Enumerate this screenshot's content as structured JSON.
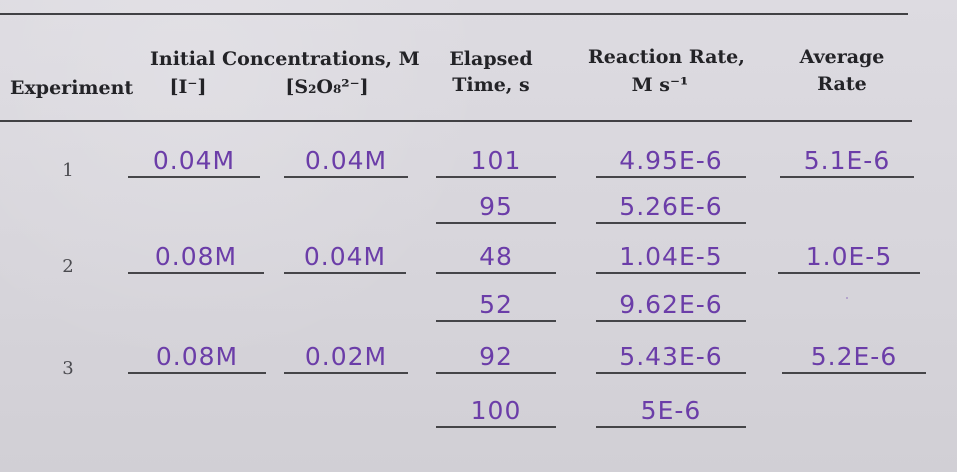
{
  "headers": {
    "experiment": "Experiment",
    "initial_concentrations": "Initial Concentrations, M",
    "iodide": "[I⁻]",
    "persulfate": "[S₂O₈²⁻]",
    "elapsed_time_line1": "Elapsed",
    "elapsed_time_line2": "Time, s",
    "reaction_rate_line1": "Reaction Rate,",
    "reaction_rate_line2": "M s⁻¹",
    "average_rate_line1": "Average",
    "average_rate_line2": "Rate"
  },
  "experiments": [
    {
      "number": "1",
      "iodide": "0.04M",
      "persulfate": "0.04M",
      "elapsed_times": [
        "101",
        "95"
      ],
      "reaction_rates": [
        "4.95E-6",
        "5.26E-6"
      ],
      "average_rate": "5.1E-6"
    },
    {
      "number": "2",
      "iodide": "0.08M",
      "persulfate": "0.04M",
      "elapsed_times": [
        "48",
        "52"
      ],
      "reaction_rates": [
        "1.04E-5",
        "9.62E-6"
      ],
      "average_rate": "1.0E-5"
    },
    {
      "number": "3",
      "iodide": "0.08M",
      "persulfate": "0.02M",
      "elapsed_times": [
        "92",
        "100"
      ],
      "reaction_rates": [
        "5.43E-6",
        "5E-6"
      ],
      "average_rate": "5.2E-6"
    }
  ]
}
